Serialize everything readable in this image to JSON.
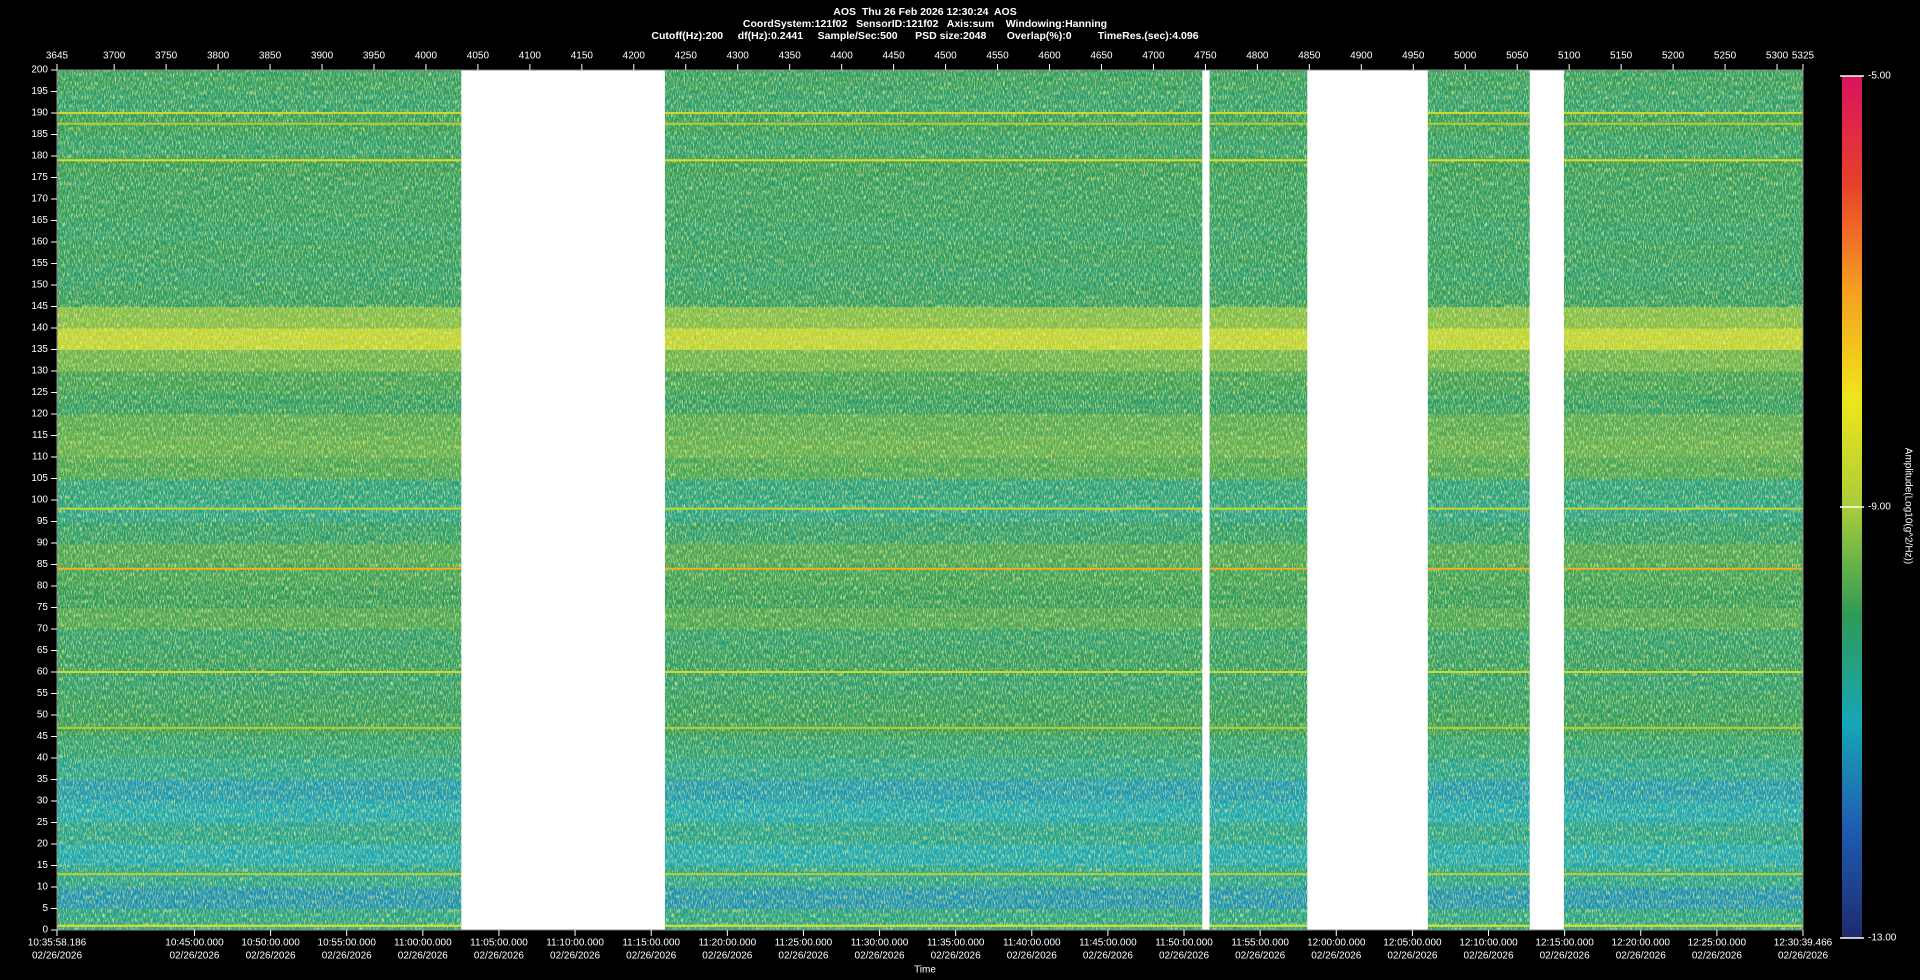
{
  "chart_data": {
    "type": "spectrogram",
    "title": "AOS  Thu 26 Feb 2026 12:30:24  AOS",
    "subtitle": [
      "CoordSystem:121f02   SensorID:121f02   Axis:sum    Windowing:Hanning",
      "Cutoff(Hz):200     df(Hz):0.2441     Sample/Sec:500      PSD size:2048       Overlap(%):0         TimeRes.(sec):4.096"
    ],
    "xlabel": "Time",
    "xlim": [
      3645,
      5325
    ],
    "xticks": [
      3645,
      3700,
      3750,
      3800,
      3850,
      3900,
      3950,
      4000,
      4050,
      4100,
      4150,
      4200,
      4250,
      4300,
      4350,
      4400,
      4450,
      4500,
      4550,
      4600,
      4650,
      4700,
      4750,
      4800,
      4850,
      4900,
      4950,
      5000,
      5050,
      5100,
      5150,
      5200,
      5250,
      5300,
      5325
    ],
    "time_ticks": [
      {
        "value": 3645,
        "label": "10:35:58.186"
      },
      {
        "value": 3777.28,
        "label": "10:45:00.000"
      },
      {
        "value": 3850.52,
        "label": "10:50:00.000"
      },
      {
        "value": 3923.77,
        "label": "10:55:00.000"
      },
      {
        "value": 3997.01,
        "label": "11:00:00.000"
      },
      {
        "value": 4070.25,
        "label": "11:05:00.000"
      },
      {
        "value": 4143.49,
        "label": "11:10:00.000"
      },
      {
        "value": 4216.73,
        "label": "11:15:00.000"
      },
      {
        "value": 4289.98,
        "label": "11:20:00.000"
      },
      {
        "value": 4363.22,
        "label": "11:25:00.000"
      },
      {
        "value": 4436.46,
        "label": "11:30:00.000"
      },
      {
        "value": 4509.7,
        "label": "11:35:00.000"
      },
      {
        "value": 4582.94,
        "label": "11:40:00.000"
      },
      {
        "value": 4656.19,
        "label": "11:45:00.000"
      },
      {
        "value": 4729.43,
        "label": "11:50:00.000"
      },
      {
        "value": 4802.67,
        "label": "11:55:00.000"
      },
      {
        "value": 4875.91,
        "label": "12:00:00.000"
      },
      {
        "value": 4949.15,
        "label": "12:05:00.000"
      },
      {
        "value": 5022.4,
        "label": "12:10:00.000"
      },
      {
        "value": 5095.64,
        "label": "12:15:00.000"
      },
      {
        "value": 5168.88,
        "label": "12:20:00.000"
      },
      {
        "value": 5242.12,
        "label": "12:25:00.000"
      },
      {
        "value": 5325,
        "label": "12:30:39.466"
      }
    ],
    "tick_date": "02/26/2026",
    "ylim": [
      0,
      200
    ],
    "yticks": [
      0,
      5,
      10,
      15,
      20,
      25,
      30,
      35,
      40,
      45,
      50,
      55,
      60,
      65,
      70,
      75,
      80,
      85,
      90,
      95,
      100,
      105,
      110,
      115,
      120,
      125,
      130,
      135,
      140,
      145,
      150,
      155,
      160,
      165,
      170,
      175,
      180,
      185,
      190,
      195,
      200
    ],
    "clim": [
      -13,
      -5
    ],
    "cticks": [
      {
        "value": -5,
        "label": "-5.00"
      },
      {
        "value": -9,
        "label": "-9.00"
      },
      {
        "value": -13,
        "label": "-13.00"
      }
    ],
    "colorbar_label": "Amplitude(Log10(g^2/Hz))",
    "colormap": [
      "#1d2a6e",
      "#1f5cb0",
      "#17a6b5",
      "#2f9a58",
      "#a9cc3a",
      "#f0e61c",
      "#f5a020",
      "#e8402a",
      "#d8135e"
    ],
    "segments": [
      [
        3645,
        4034
      ],
      [
        4230,
        4747
      ],
      [
        4754,
        4848
      ],
      [
        4964,
        5062
      ],
      [
        5095,
        5325
      ]
    ],
    "freq_bins": [
      0,
      5,
      10,
      15,
      20,
      25,
      30,
      35,
      40,
      45,
      50,
      55,
      60,
      65,
      70,
      75,
      80,
      85,
      90,
      95,
      100,
      105,
      110,
      115,
      120,
      125,
      130,
      135,
      140,
      145,
      150,
      155,
      160,
      165,
      170,
      175,
      180,
      185,
      190,
      195,
      200
    ],
    "mean_amplitude": [
      -10.5,
      -11.3,
      -10.6,
      -11,
      -10.6,
      -11,
      -11.2,
      -10.6,
      -10.3,
      -10,
      -10.1,
      -10.2,
      -10.1,
      -10.2,
      -9.8,
      -10,
      -9.9,
      -9.8,
      -10.2,
      -10.5,
      -10.4,
      -9.8,
      -9.6,
      -9.7,
      -10.1,
      -9.9,
      -9.5,
      -8.6,
      -9.3,
      -10.1,
      -10.2,
      -10.1,
      -10.2,
      -10.1,
      -10.1,
      -10,
      -10.2,
      -10,
      -10.2,
      -10.1
    ],
    "tones": [
      {
        "freq": 84,
        "amp": -7.2
      },
      {
        "freq": 60,
        "amp": -8.5
      },
      {
        "freq": 98,
        "amp": -8.6
      },
      {
        "freq": 190,
        "amp": -8.5
      },
      {
        "freq": 187.5,
        "amp": -8.9
      },
      {
        "freq": 179,
        "amp": -8.3
      },
      {
        "freq": 47,
        "amp": -8.9
      },
      {
        "freq": 13,
        "amp": -8.8
      },
      {
        "freq": 1,
        "amp": -8.2
      }
    ]
  }
}
